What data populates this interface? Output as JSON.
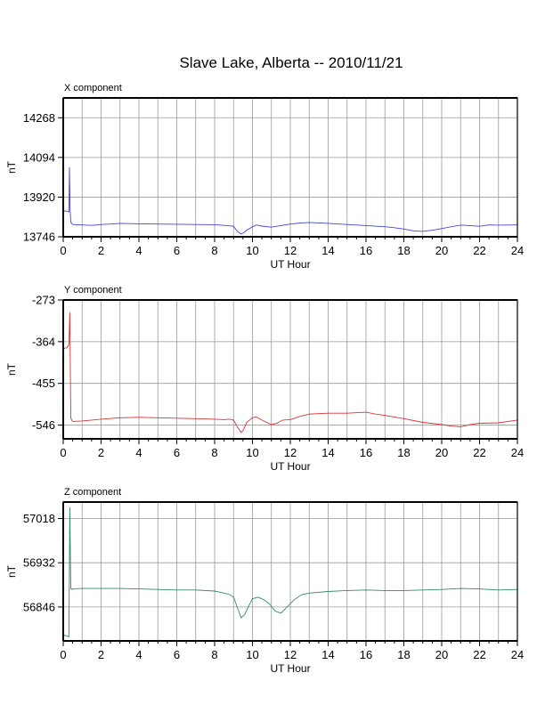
{
  "title": "Slave Lake, Alberta -- 2010/11/21",
  "chart_data": [
    {
      "type": "line",
      "panel_label": "X component",
      "xlabel": "UT Hour",
      "ylabel": "nT",
      "xlim": [
        0,
        24
      ],
      "ylim": [
        13746,
        14355
      ],
      "x_ticks": [
        0,
        2,
        4,
        6,
        8,
        10,
        12,
        14,
        16,
        18,
        20,
        22,
        24
      ],
      "y_ticks": [
        13746,
        13920,
        14094,
        14268
      ],
      "grid": true,
      "color": "#4444dd",
      "series": [
        {
          "x": [
            0,
            0.1,
            0.2,
            0.3,
            0.33,
            0.36,
            0.4,
            0.45,
            0.5,
            1,
            1.5,
            2,
            2.5,
            3,
            4,
            5,
            6,
            7,
            8,
            8.5,
            9,
            9.2,
            9.4,
            9.5,
            9.7,
            10,
            10.2,
            10.5,
            11,
            11.5,
            12,
            12.5,
            13,
            13.5,
            14,
            15,
            16,
            17,
            17.5,
            18,
            18.5,
            19,
            19.5,
            20,
            20.5,
            21,
            21.5,
            22,
            22.5,
            23,
            24
          ],
          "y": [
            13856,
            13860,
            13858,
            13855,
            14050,
            13870,
            13810,
            13805,
            13800,
            13798,
            13796,
            13800,
            13802,
            13805,
            13803,
            13802,
            13801,
            13800,
            13799,
            13796,
            13792,
            13770,
            13758,
            13762,
            13775,
            13790,
            13798,
            13793,
            13788,
            13795,
            13802,
            13806,
            13809,
            13807,
            13805,
            13800,
            13795,
            13790,
            13786,
            13780,
            13772,
            13770,
            13775,
            13782,
            13790,
            13797,
            13795,
            13792,
            13798,
            13797,
            13798
          ]
        }
      ]
    },
    {
      "type": "line",
      "panel_label": "Y component",
      "xlabel": "UT Hour",
      "ylabel": "nT",
      "xlim": [
        0,
        24
      ],
      "ylim": [
        -576,
        -273
      ],
      "x_ticks": [
        0,
        2,
        4,
        6,
        8,
        10,
        12,
        14,
        16,
        18,
        20,
        22,
        24
      ],
      "y_ticks": [
        -273,
        -364,
        -455,
        -546
      ],
      "grid": true,
      "color": "#dd3333",
      "series": [
        {
          "x": [
            0,
            0.1,
            0.2,
            0.3,
            0.35,
            0.4,
            0.45,
            0.5,
            1,
            2,
            3,
            4,
            5,
            6,
            7,
            8,
            8.5,
            8.8,
            9,
            9.2,
            9.4,
            9.5,
            9.7,
            10,
            10.2,
            10.5,
            11,
            11.3,
            11.6,
            12,
            12.5,
            13,
            14,
            15,
            16,
            16.5,
            17,
            18,
            19,
            20,
            20.5,
            21,
            21.5,
            22,
            23,
            24
          ],
          "y": [
            -380,
            -378,
            -377,
            -370,
            -300,
            -530,
            -536,
            -538,
            -537,
            -533,
            -530,
            -529,
            -530,
            -531,
            -532,
            -533,
            -534,
            -533,
            -535,
            -550,
            -562,
            -558,
            -540,
            -530,
            -528,
            -535,
            -545,
            -542,
            -535,
            -534,
            -527,
            -522,
            -520,
            -520,
            -518,
            -522,
            -525,
            -532,
            -540,
            -545,
            -548,
            -550,
            -545,
            -542,
            -541,
            -535
          ]
        }
      ]
    },
    {
      "type": "line",
      "panel_label": "Z component",
      "xlabel": "UT Hour",
      "ylabel": "nT",
      "xlim": [
        0,
        24
      ],
      "ylim": [
        56780,
        57050
      ],
      "x_ticks": [
        0,
        2,
        4,
        6,
        8,
        10,
        12,
        14,
        16,
        18,
        20,
        22,
        24
      ],
      "y_ticks": [
        57018,
        56932,
        56846
      ],
      "grid": true,
      "color": "#2f8a6a",
      "series": [
        {
          "x": [
            0,
            0.1,
            0.2,
            0.3,
            0.35,
            0.4,
            0.45,
            0.5,
            1,
            2,
            3,
            4,
            5,
            6,
            7,
            8,
            8.5,
            8.8,
            9,
            9.2,
            9.4,
            9.6,
            9.8,
            10,
            10.3,
            10.6,
            10.9,
            11.2,
            11.5,
            11.8,
            12.2,
            12.6,
            13,
            14,
            15,
            16,
            17,
            18,
            19,
            20,
            21,
            22,
            23,
            24
          ],
          "y": [
            56792,
            56790,
            56790,
            56788,
            57040,
            56882,
            56880,
            56881,
            56882,
            56882,
            56882,
            56881,
            56880,
            56879,
            56879,
            56877,
            56873,
            56870,
            56865,
            56845,
            56825,
            56832,
            56848,
            56862,
            56865,
            56860,
            56852,
            56838,
            56834,
            56845,
            56860,
            56870,
            56873,
            56876,
            56878,
            56879,
            56878,
            56878,
            56879,
            56880,
            56882,
            56881,
            56879,
            56880
          ]
        }
      ]
    }
  ]
}
